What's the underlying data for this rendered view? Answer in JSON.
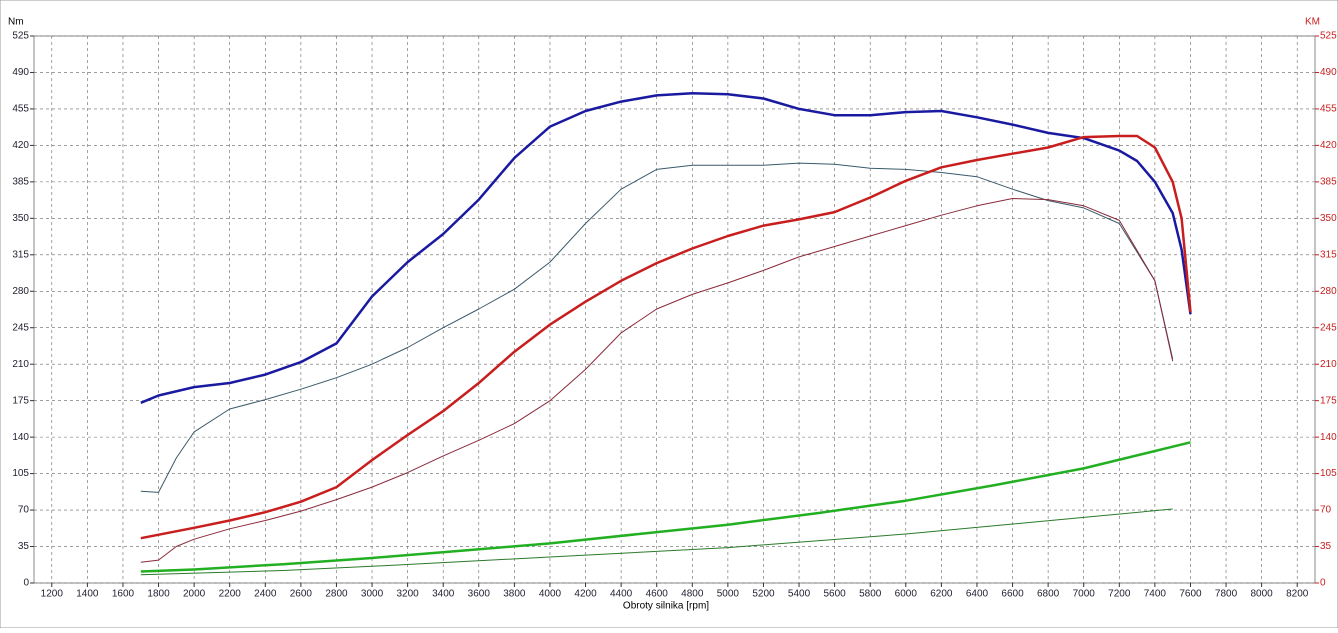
{
  "chart_data": {
    "type": "line",
    "y_label": "Nm",
    "y2_label": "KM",
    "x_label": "Obroty silnika [rpm]",
    "xlim": [
      1100,
      8300
    ],
    "xticks": [
      1200,
      1400,
      1600,
      1800,
      2000,
      2200,
      2400,
      2600,
      2800,
      3000,
      3200,
      3400,
      3600,
      3800,
      4000,
      4200,
      4400,
      4600,
      4800,
      5000,
      5200,
      5400,
      5600,
      5800,
      6000,
      6200,
      6400,
      6600,
      6800,
      7000,
      7200,
      7400,
      7600,
      7800,
      8000,
      8200
    ],
    "ylim": [
      0,
      525
    ],
    "yticks": [
      0,
      35,
      70,
      105,
      140,
      175,
      210,
      245,
      280,
      315,
      350,
      385,
      420,
      455,
      490,
      525
    ],
    "y2lim": [
      0,
      525
    ],
    "y2ticks": [
      0,
      35,
      70,
      105,
      140,
      175,
      210,
      245,
      280,
      315,
      350,
      385,
      420,
      455,
      490,
      525
    ],
    "grid": true,
    "series": [
      {
        "color": "#1a1aa0",
        "width": 2.5,
        "x": [
          1700,
          1800,
          2000,
          2200,
          2400,
          2600,
          2800,
          3000,
          3200,
          3400,
          3600,
          3800,
          4000,
          4200,
          4400,
          4600,
          4800,
          5000,
          5200,
          5400,
          5600,
          5800,
          6000,
          6200,
          6400,
          6600,
          6800,
          7000,
          7200,
          7300,
          7400,
          7500,
          7550,
          7600
        ],
        "values": [
          173,
          180,
          188,
          192,
          200,
          212,
          230,
          275,
          308,
          335,
          368,
          408,
          438,
          453,
          462,
          468,
          470,
          469,
          465,
          455,
          449,
          449,
          452,
          453,
          447,
          440,
          432,
          427,
          415,
          405,
          385,
          355,
          320,
          258
        ]
      },
      {
        "color": "#3a5a6a",
        "width": 1,
        "x": [
          1700,
          1800,
          1900,
          2000,
          2200,
          2400,
          2600,
          2800,
          3000,
          3200,
          3400,
          3600,
          3800,
          4000,
          4200,
          4400,
          4600,
          4800,
          5000,
          5200,
          5400,
          5600,
          5800,
          6000,
          6200,
          6400,
          6600,
          6800,
          7000,
          7200,
          7400,
          7500
        ],
        "values": [
          88,
          87,
          120,
          145,
          167,
          176,
          186,
          197,
          210,
          226,
          245,
          263,
          282,
          308,
          345,
          378,
          397,
          401,
          401,
          401,
          403,
          402,
          398,
          397,
          394,
          390,
          378,
          367,
          360,
          345,
          290,
          215
        ]
      },
      {
        "color": "#c81e1e",
        "width": 2.5,
        "x": [
          1700,
          2000,
          2200,
          2400,
          2600,
          2800,
          3000,
          3200,
          3400,
          3600,
          3800,
          4000,
          4200,
          4400,
          4600,
          4800,
          5000,
          5200,
          5400,
          5600,
          5800,
          6000,
          6200,
          6400,
          6600,
          6800,
          7000,
          7200,
          7300,
          7400,
          7500,
          7550,
          7600
        ],
        "values": [
          43,
          53,
          60,
          68,
          78,
          92,
          118,
          142,
          165,
          192,
          222,
          248,
          270,
          290,
          307,
          321,
          333,
          343,
          349,
          356,
          370,
          386,
          399,
          406,
          412,
          418,
          428,
          429,
          429,
          418,
          385,
          350,
          260
        ]
      },
      {
        "color": "#8a2a3a",
        "width": 1,
        "x": [
          1700,
          1800,
          1900,
          2000,
          2200,
          2400,
          2600,
          2800,
          3000,
          3200,
          3400,
          3600,
          3800,
          4000,
          4200,
          4400,
          4600,
          4800,
          5000,
          5200,
          5400,
          5600,
          5800,
          6000,
          6200,
          6400,
          6600,
          6800,
          7000,
          7200,
          7400,
          7500
        ],
        "values": [
          20,
          22,
          35,
          42,
          52,
          60,
          69,
          80,
          92,
          106,
          122,
          137,
          153,
          175,
          205,
          240,
          263,
          277,
          288,
          300,
          313,
          323,
          333,
          343,
          353,
          362,
          369,
          368,
          362,
          348,
          290,
          213
        ]
      },
      {
        "color": "#22b022",
        "width": 2.5,
        "x": [
          1700,
          2000,
          2500,
          3000,
          3500,
          4000,
          4500,
          5000,
          5500,
          6000,
          6500,
          7000,
          7600
        ],
        "values": [
          11,
          13,
          18,
          24,
          31,
          38,
          47,
          56,
          67,
          79,
          94,
          110,
          135
        ]
      },
      {
        "color": "#2a7a2a",
        "width": 1,
        "x": [
          1700,
          2500,
          3000,
          4000,
          5000,
          6000,
          7000,
          7500
        ],
        "values": [
          8,
          12,
          16,
          25,
          34,
          47,
          63,
          71
        ]
      }
    ]
  }
}
